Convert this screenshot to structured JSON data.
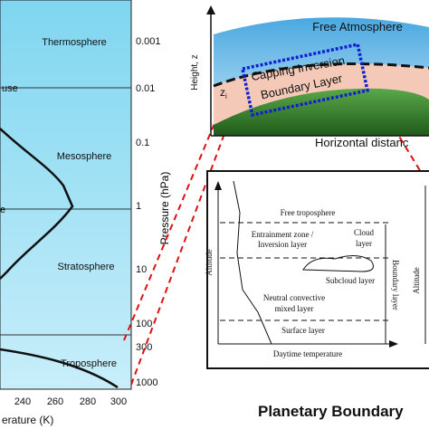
{
  "left_panel": {
    "layers": [
      "Thermosphere",
      "use",
      "Mesosphere",
      "e",
      "Stratosphere",
      "Troposphere"
    ],
    "pressure_ticks": [
      "0.001",
      "0.01",
      "0.1",
      "1",
      "10",
      "100",
      "300",
      "1000"
    ],
    "pressure_label": "Pressure (hPa)",
    "temperature_ticks": [
      "240",
      "260",
      "280",
      "300"
    ],
    "temperature_label": "erature (K)"
  },
  "top_right": {
    "free_atmosphere": "Free Atmosphere",
    "capping_inversion": "Capping Inversion",
    "boundary_layer": "Boundary Layer",
    "height_label": "Height, z",
    "zi_base": "z",
    "zi_sub": "i",
    "horizontal_label": "Horizontal distanc"
  },
  "inset": {
    "free_troposphere": "Free troposphere",
    "entrainment_zone": "Entrainment zone /",
    "inversion_layer": "Inversion layer",
    "cloud_layer_1": "Cloud",
    "cloud_layer_2": "layer",
    "subcloud_layer": "Subcloud layer",
    "mixed_layer_1": "Neutral convective",
    "mixed_layer_2": "mixed layer",
    "surface_layer": "Surface layer",
    "altitude": "Altitude",
    "boundary_layer": "Boundary layer",
    "daytime_temperature": "Daytime temperature",
    "altitude_2": "Altitude"
  },
  "caption": "Planetary Boundary"
}
